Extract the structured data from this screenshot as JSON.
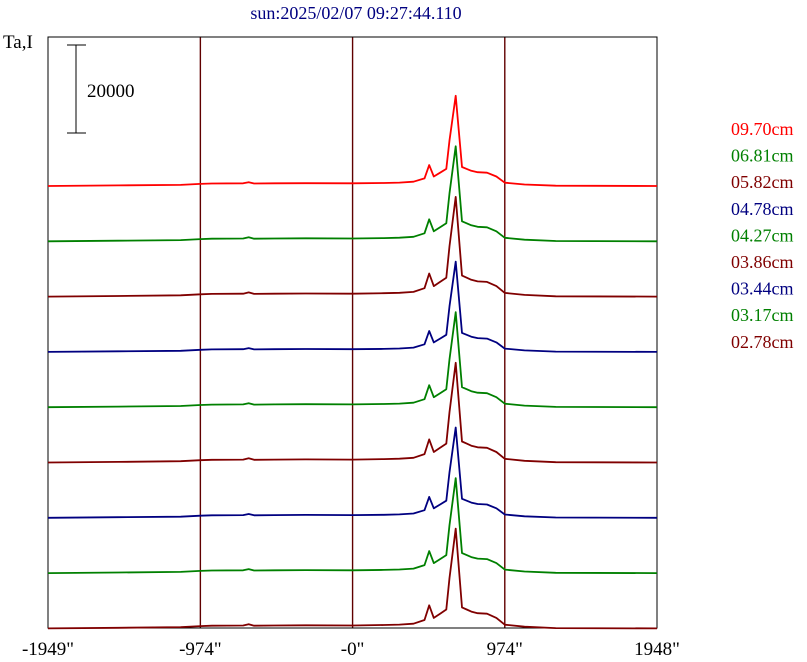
{
  "chart_data": {
    "type": "line",
    "title": "sun:2025/02/07 09:27:44.110",
    "ylabel": "Ta,I",
    "scale_bar_label": "20000",
    "scale_bar_value": 20000,
    "x_ticks": [
      {
        "value": -1949,
        "label": "-1949\""
      },
      {
        "value": -974,
        "label": "-974\""
      },
      {
        "value": 0,
        "label": "-0\""
      },
      {
        "value": 974,
        "label": "974\""
      },
      {
        "value": 1948,
        "label": "1948\""
      }
    ],
    "xlim": [
      -1949,
      1948
    ],
    "vertical_gridlines": [
      -974,
      0,
      974
    ],
    "series": [
      {
        "name": "09.70cm",
        "color": "#ff0000"
      },
      {
        "name": "06.81cm",
        "color": "#008000"
      },
      {
        "name": "05.82cm",
        "color": "#800000"
      },
      {
        "name": "04.78cm",
        "color": "#000080"
      },
      {
        "name": "04.27cm",
        "color": "#008000"
      },
      {
        "name": "03.86cm",
        "color": "#800000"
      },
      {
        "name": "03.44cm",
        "color": "#000080"
      },
      {
        "name": "03.17cm",
        "color": "#008000"
      },
      {
        "name": "02.78cm",
        "color": "#800000"
      }
    ],
    "profile_x": [
      -1949,
      -1500,
      -1100,
      -974,
      -900,
      -700,
      -665,
      -630,
      -500,
      -300,
      0,
      200,
      300,
      390,
      460,
      490,
      520,
      560,
      600,
      620,
      660,
      700,
      730,
      760,
      800,
      860,
      920,
      974,
      1100,
      1300,
      1948
    ],
    "base_shape": [
      0,
      0.6,
      1.2,
      2.2,
      2.6,
      2.8,
      4.0,
      2.6,
      2.8,
      3.0,
      2.8,
      3.2,
      3.6,
      4.5,
      8.0,
      22.0,
      10.0,
      14.0,
      18.0,
      48.0,
      95.0,
      20.0,
      18.0,
      16.0,
      14.5,
      14.0,
      10.0,
      3.5,
      1.6,
      0.3,
      0
    ],
    "ylim": [
      0,
      1
    ]
  },
  "colors": {
    "frame": "#000000",
    "gridline": "#600000",
    "title": "#000080",
    "background": "#ffffff"
  }
}
